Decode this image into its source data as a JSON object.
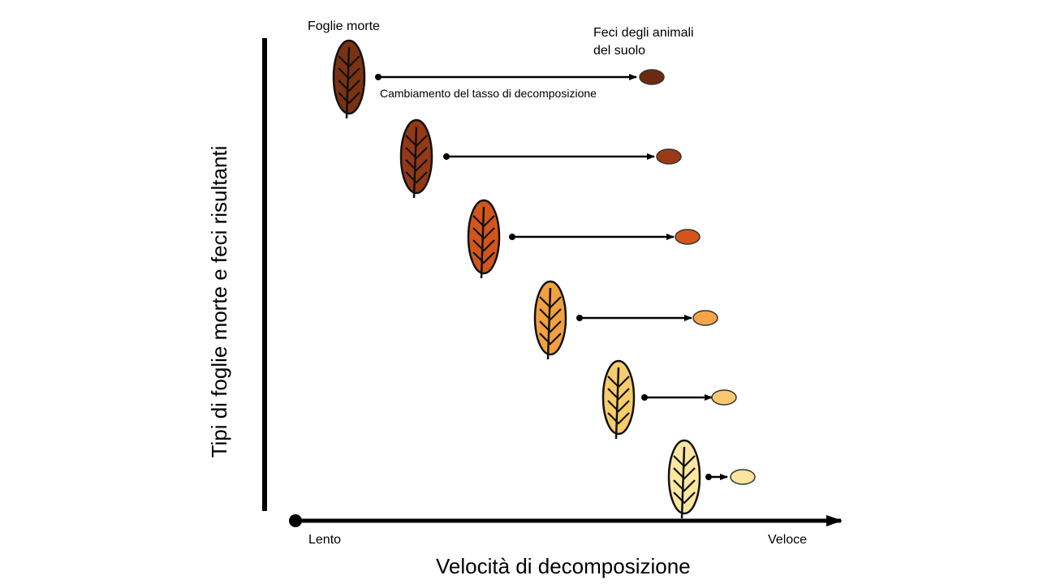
{
  "labels": {
    "dead_leaves": "Foglie morte",
    "feces_line1": "Feci degli animali",
    "feces_line2": "del suolo",
    "rate_change": "Cambiamento del tasso di decomposizione",
    "y_axis": "Tipi di foglie morte e feci risultanti",
    "x_axis": "Velocità di decomposizione",
    "slow": "Lento",
    "fast": "Veloce"
  },
  "leaf_types": [
    {
      "leaf_color": "#7a3212",
      "feces_color": "#6e2a10"
    },
    {
      "leaf_color": "#943816",
      "feces_color": "#9a3a16"
    },
    {
      "leaf_color": "#d2561c",
      "feces_color": "#d2561c"
    },
    {
      "leaf_color": "#f2a040",
      "feces_color": "#f4a448"
    },
    {
      "leaf_color": "#f7cc6a",
      "feces_color": "#f7c870"
    },
    {
      "leaf_color": "#fbe7a0",
      "feces_color": "#fae49e"
    }
  ]
}
